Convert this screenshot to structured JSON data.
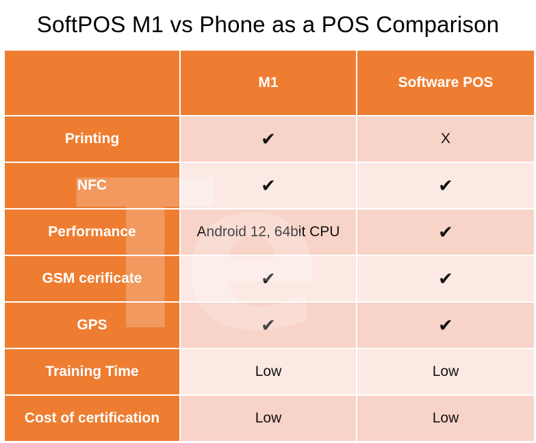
{
  "title": "SoftPOS M1 vs Phone as a POS Comparison",
  "watermark": "Te",
  "table": {
    "headers": [
      "",
      "M1",
      "Software POS"
    ],
    "rows": [
      {
        "label": "Printing",
        "m1": "✔",
        "software": "X"
      },
      {
        "label": "NFC",
        "m1": "✔",
        "software": "✔"
      },
      {
        "label": "Performance",
        "m1": "Android 12, 64bit CPU",
        "software": "✔"
      },
      {
        "label": "GSM cerificate",
        "m1": "✔",
        "software": "✔"
      },
      {
        "label": "GPS",
        "m1": "✔",
        "software": "✔"
      },
      {
        "label": "Training Time",
        "m1": "Low",
        "software": "Low"
      },
      {
        "label": "Cost of certification",
        "m1": "Low",
        "software": "Low"
      }
    ]
  },
  "colors": {
    "header_orange": "#ee7d32",
    "row_dark": "#f8d3c7",
    "row_light": "#fce9e4"
  }
}
